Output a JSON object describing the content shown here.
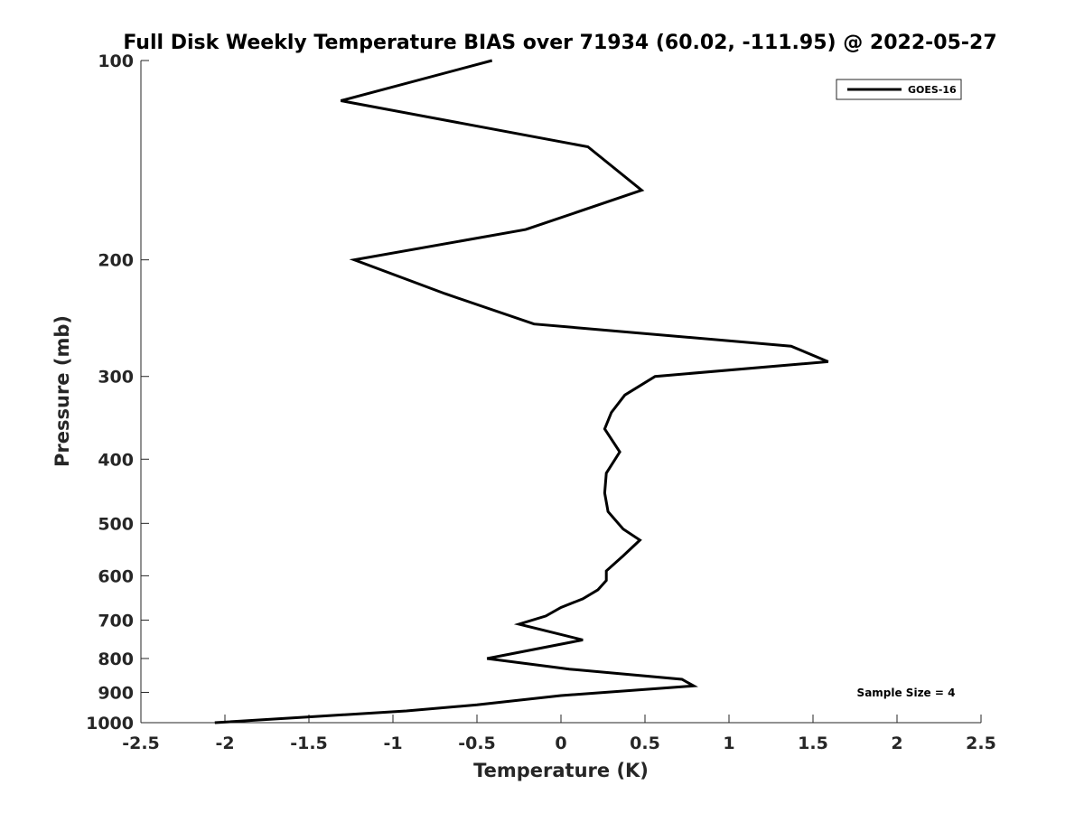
{
  "chart_data": {
    "type": "line",
    "title": "Full Disk Weekly Temperature BIAS over 71934 (60.02, -111.95) @ 2022-05-27",
    "xlabel": "Temperature (K)",
    "ylabel": "Pressure (mb)",
    "xlim": [
      -2.5,
      2.5
    ],
    "ylim": [
      100,
      1000
    ],
    "yscale": "log",
    "y_reversed": true,
    "xticks": [
      -2.5,
      -2,
      -1.5,
      -1,
      -0.5,
      0,
      0.5,
      1,
      1.5,
      2,
      2.5
    ],
    "xtick_labels": [
      "-2.5",
      "-2",
      "-1.5",
      "-1",
      "-0.5",
      "0",
      "0.5",
      "1",
      "1.5",
      "2",
      "2.5"
    ],
    "yticks": [
      100,
      200,
      300,
      400,
      500,
      600,
      700,
      800,
      900,
      1000
    ],
    "ytick_labels": [
      "100",
      "200",
      "300",
      "400",
      "500",
      "600",
      "700",
      "800",
      "900",
      "1000"
    ],
    "grid": false,
    "legend_position": "top-right",
    "series": [
      {
        "name": "GOES-16",
        "color": "#000000",
        "points": [
          [
            -0.41,
            100
          ],
          [
            -1.31,
            115
          ],
          [
            0.16,
            135
          ],
          [
            0.48,
            157
          ],
          [
            -0.21,
            180
          ],
          [
            -1.23,
            200
          ],
          [
            -0.69,
            225
          ],
          [
            -0.16,
            250
          ],
          [
            1.37,
            270
          ],
          [
            1.59,
            285
          ],
          [
            0.56,
            300
          ],
          [
            0.38,
            320
          ],
          [
            0.3,
            340
          ],
          [
            0.26,
            360
          ],
          [
            0.35,
            390
          ],
          [
            0.27,
            420
          ],
          [
            0.26,
            450
          ],
          [
            0.28,
            480
          ],
          [
            0.37,
            510
          ],
          [
            0.47,
            530
          ],
          [
            0.37,
            560
          ],
          [
            0.27,
            590
          ],
          [
            0.27,
            610
          ],
          [
            0.22,
            630
          ],
          [
            0.13,
            650
          ],
          [
            0.0,
            670
          ],
          [
            -0.09,
            690
          ],
          [
            -0.25,
            710
          ],
          [
            0.13,
            750
          ],
          [
            -0.44,
            800
          ],
          [
            0.05,
            830
          ],
          [
            0.72,
            860
          ],
          [
            0.79,
            880
          ],
          [
            0.0,
            910
          ],
          [
            -0.5,
            940
          ],
          [
            -0.92,
            960
          ],
          [
            -1.5,
            980
          ],
          [
            -2.06,
            1000
          ]
        ]
      }
    ],
    "annotations": [
      "Sample Size = 4"
    ]
  }
}
